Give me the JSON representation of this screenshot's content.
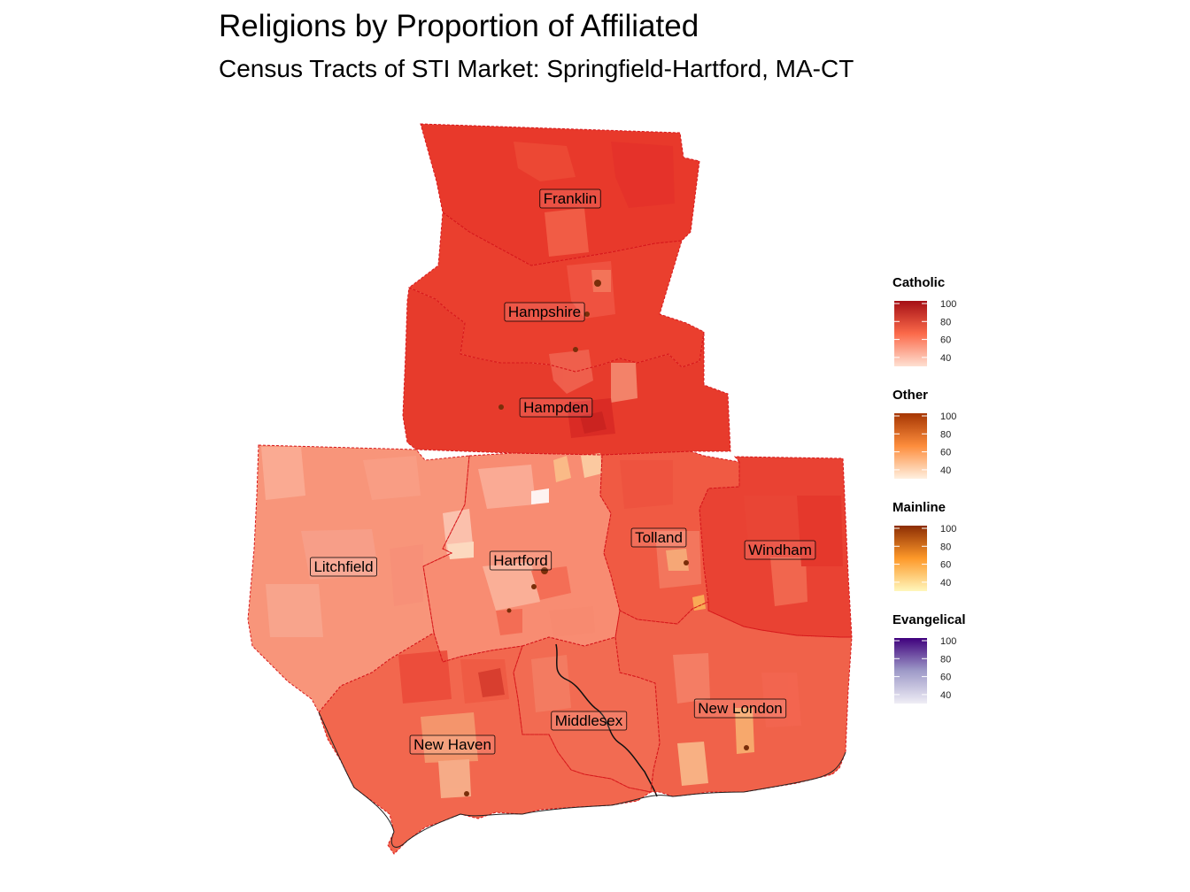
{
  "title": "Religions by Proportion of Affiliated",
  "subtitle": "Census Tracts of STI Market: Springfield-Hartford, MA-CT",
  "counties": [
    {
      "id": "franklin",
      "name": "Franklin",
      "fill": "#e8392b"
    },
    {
      "id": "hampshire",
      "name": "Hampshire",
      "fill": "#ea3f2e"
    },
    {
      "id": "hampden",
      "name": "Hampden",
      "fill": "#e73b2c"
    },
    {
      "id": "litchfield",
      "name": "Litchfield",
      "fill": "#f8957a"
    },
    {
      "id": "hartford",
      "name": "Hartford",
      "fill": "#f88c72"
    },
    {
      "id": "tolland",
      "name": "Tolland",
      "fill": "#f05a43"
    },
    {
      "id": "windham",
      "name": "Windham",
      "fill": "#e94233"
    },
    {
      "id": "middlesex",
      "name": "Middlesex",
      "fill": "#f26b52"
    },
    {
      "id": "new-london",
      "name": "New London",
      "fill": "#f0624a"
    },
    {
      "id": "new-haven",
      "name": "New Haven",
      "fill": "#f2674e"
    }
  ],
  "legends": [
    {
      "id": "catholic",
      "title": "Catholic",
      "ticks": [
        "100",
        "80",
        "60",
        "40"
      ],
      "colors": [
        "#fee0d2",
        "#fb6a4a",
        "#a50f15"
      ]
    },
    {
      "id": "other",
      "title": "Other",
      "ticks": [
        "100",
        "80",
        "60",
        "40"
      ],
      "colors": [
        "#fff0e0",
        "#fd8d3c",
        "#a63603"
      ]
    },
    {
      "id": "mainline",
      "title": "Mainline",
      "ticks": [
        "100",
        "80",
        "60",
        "40"
      ],
      "colors": [
        "#fff7bc",
        "#fe9929",
        "#8c2d04"
      ]
    },
    {
      "id": "evangelical",
      "title": "Evangelical",
      "ticks": [
        "100",
        "80",
        "60",
        "40"
      ],
      "colors": [
        "#efedf5",
        "#9e9ac8",
        "#3f007d"
      ]
    }
  ]
}
